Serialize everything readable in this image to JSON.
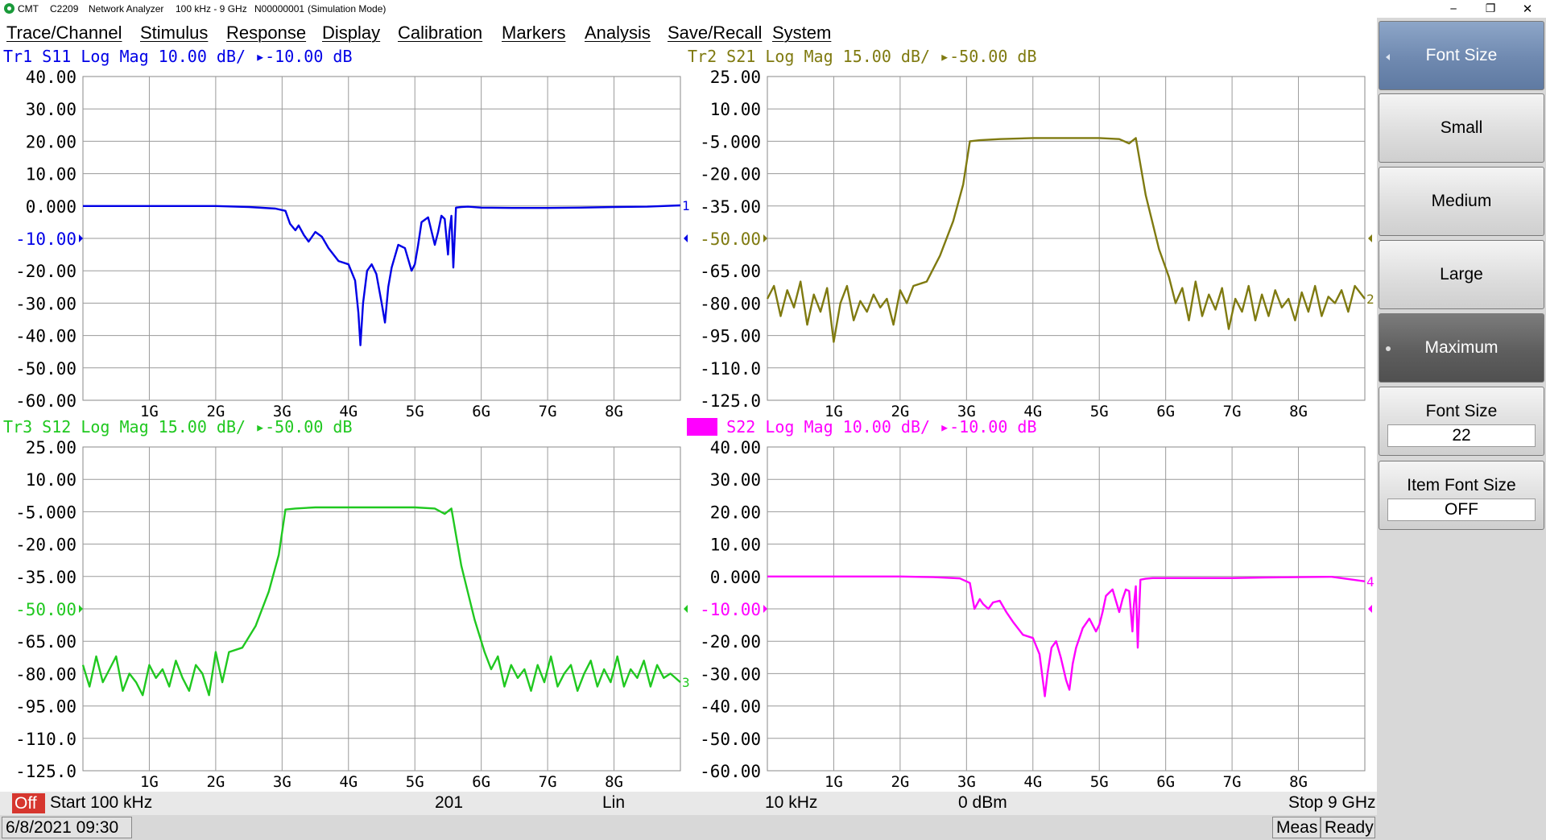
{
  "window": {
    "brand": "CMT",
    "model": "C2209",
    "app": "Network Analyzer",
    "range": "100 kHz - 9 GHz",
    "serial": "N00000001",
    "mode": "(Simulation Mode)",
    "minimize_glyph": "─",
    "restore_glyph": "❐",
    "close_glyph": "✕"
  },
  "menu": [
    "Trace/Channel",
    "Stimulus",
    "Response",
    "Display",
    "Calibration",
    "Markers",
    "Analysis",
    "Save/Recall",
    "System"
  ],
  "colors": {
    "tr1": "#0000e6",
    "tr2": "#7f7a10",
    "tr3": "#20c820",
    "tr4": "#ff00ff",
    "tr4_badge_text": "#ffffff",
    "grid": "#9a9a9a",
    "off_badge": "#d6362e",
    "softkey_header": "#6f89b0"
  },
  "softkeys": {
    "header": "Font Size",
    "small": "Small",
    "medium": "Medium",
    "large": "Large",
    "maximum": "Maximum",
    "font_size_label": "Font Size",
    "font_size_value": "22",
    "item_font_size_label": "Item Font Size",
    "item_font_size_value": "OFF"
  },
  "status": {
    "off": "Off",
    "start": "Start 100 kHz",
    "points": "201",
    "sweep_type": "Lin",
    "ifbw": "10 kHz",
    "power": "0 dBm",
    "stop": "Stop 9 GHz"
  },
  "bottom": {
    "datetime": "6/8/2021 09:30",
    "meas": "Meas",
    "ready": "Ready"
  },
  "chart_data": [
    {
      "type": "line",
      "trace": "Tr1",
      "param": "S11",
      "format": "Log Mag",
      "scale": "10.00 dB/",
      "ref_glyph": "▸",
      "ref": "-10.00 dB",
      "yticks": [
        "40.00",
        "30.00",
        "20.00",
        "10.00",
        "0.000",
        "-10.00",
        "-20.00",
        "-30.00",
        "-40.00",
        "-50.00",
        "-60.00"
      ],
      "ytick_ref_index": 5,
      "ylim": [
        -60,
        40
      ],
      "xlim": [
        0,
        9
      ],
      "xticks": [
        "1G",
        "2G",
        "3G",
        "4G",
        "5G",
        "6G",
        "7G",
        "8G"
      ],
      "trace_number": "1",
      "x": [
        0,
        0.5,
        1,
        1.5,
        2,
        2.5,
        2.9,
        3.05,
        3.12,
        3.2,
        3.25,
        3.33,
        3.4,
        3.5,
        3.6,
        3.7,
        3.85,
        4.0,
        4.1,
        4.15,
        4.18,
        4.22,
        4.28,
        4.35,
        4.42,
        4.5,
        4.55,
        4.6,
        4.65,
        4.75,
        4.85,
        4.95,
        5.0,
        5.05,
        5.1,
        5.2,
        5.3,
        5.35,
        5.4,
        5.45,
        5.5,
        5.52,
        5.55,
        5.58,
        5.62,
        5.7,
        5.8,
        6,
        6.5,
        7,
        7.5,
        8,
        8.5,
        9
      ],
      "y": [
        0,
        0,
        0,
        0,
        0,
        -0.3,
        -0.8,
        -1.5,
        -5.5,
        -7.5,
        -6,
        -9,
        -11,
        -8,
        -9.5,
        -13,
        -17,
        -18,
        -23,
        -33,
        -43,
        -30,
        -20,
        -18,
        -21,
        -30,
        -36,
        -25,
        -19,
        -12,
        -13,
        -20,
        -18,
        -12,
        -5,
        -3.5,
        -12,
        -8,
        -3,
        -4,
        -15,
        -8,
        -3,
        -19,
        -0.5,
        -0.3,
        -0.2,
        -0.5,
        -0.6,
        -0.6,
        -0.5,
        -0.3,
        -0.2,
        0.2
      ]
    },
    {
      "type": "line",
      "trace": "Tr2",
      "param": "S21",
      "format": "Log Mag",
      "scale": "15.00 dB/",
      "ref_glyph": "▸",
      "ref": "-50.00 dB",
      "yticks": [
        "25.00",
        "10.00",
        "-5.000",
        "-20.00",
        "-35.00",
        "-50.00",
        "-65.00",
        "-80.00",
        "-95.00",
        "-110.0",
        "-125.0"
      ],
      "ytick_ref_index": 5,
      "ylim": [
        -125,
        25
      ],
      "xlim": [
        0,
        9
      ],
      "xticks": [
        "1G",
        "2G",
        "3G",
        "4G",
        "5G",
        "6G",
        "7G",
        "8G"
      ],
      "trace_number": "2",
      "x": [
        0,
        0.1,
        0.2,
        0.3,
        0.4,
        0.5,
        0.6,
        0.7,
        0.8,
        0.9,
        1.0,
        1.1,
        1.2,
        1.3,
        1.4,
        1.5,
        1.6,
        1.7,
        1.8,
        1.9,
        2.0,
        2.1,
        2.2,
        2.4,
        2.6,
        2.8,
        2.95,
        3.05,
        3.2,
        3.5,
        4.0,
        4.5,
        5.0,
        5.3,
        5.45,
        5.55,
        5.7,
        5.9,
        6.05,
        6.15,
        6.25,
        6.35,
        6.45,
        6.55,
        6.65,
        6.75,
        6.85,
        6.95,
        7.05,
        7.15,
        7.25,
        7.35,
        7.45,
        7.55,
        7.65,
        7.75,
        7.85,
        7.95,
        8.05,
        8.15,
        8.25,
        8.35,
        8.45,
        8.55,
        8.65,
        8.75,
        8.85,
        9.0
      ],
      "y": [
        -78,
        -72,
        -86,
        -74,
        -82,
        -70,
        -90,
        -76,
        -84,
        -73,
        -98,
        -80,
        -72,
        -88,
        -79,
        -84,
        -76,
        -82,
        -78,
        -90,
        -74,
        -80,
        -72,
        -70,
        -58,
        -42,
        -25,
        -5,
        -4.5,
        -4,
        -3.5,
        -3.5,
        -3.5,
        -4,
        -6,
        -3.5,
        -30,
        -55,
        -68,
        -80,
        -73,
        -88,
        -70,
        -86,
        -76,
        -83,
        -73,
        -92,
        -78,
        -84,
        -72,
        -88,
        -76,
        -86,
        -74,
        -82,
        -78,
        -88,
        -75,
        -84,
        -72,
        -86,
        -77,
        -80,
        -74,
        -84,
        -72,
        -78
      ]
    },
    {
      "type": "line",
      "trace": "Tr3",
      "param": "S12",
      "format": "Log Mag",
      "scale": "15.00 dB/",
      "ref_glyph": "▸",
      "ref": "-50.00 dB",
      "yticks": [
        "25.00",
        "10.00",
        "-5.000",
        "-20.00",
        "-35.00",
        "-50.00",
        "-65.00",
        "-80.00",
        "-95.00",
        "-110.0",
        "-125.0"
      ],
      "ytick_ref_index": 5,
      "ylim": [
        -125,
        25
      ],
      "xlim": [
        0,
        9
      ],
      "xticks": [
        "1G",
        "2G",
        "3G",
        "4G",
        "5G",
        "6G",
        "7G",
        "8G"
      ],
      "trace_number": "3",
      "x": [
        0,
        0.1,
        0.2,
        0.3,
        0.4,
        0.5,
        0.6,
        0.7,
        0.8,
        0.9,
        1.0,
        1.1,
        1.2,
        1.3,
        1.4,
        1.5,
        1.6,
        1.7,
        1.8,
        1.9,
        2.0,
        2.1,
        2.2,
        2.4,
        2.6,
        2.8,
        2.95,
        3.05,
        3.2,
        3.5,
        4.0,
        4.5,
        5.0,
        5.3,
        5.45,
        5.55,
        5.7,
        5.9,
        6.05,
        6.15,
        6.25,
        6.35,
        6.45,
        6.55,
        6.65,
        6.75,
        6.85,
        6.95,
        7.05,
        7.15,
        7.25,
        7.35,
        7.45,
        7.55,
        7.65,
        7.75,
        7.85,
        7.95,
        8.05,
        8.15,
        8.25,
        8.35,
        8.45,
        8.55,
        8.65,
        8.75,
        8.85,
        9.0
      ],
      "y": [
        -76,
        -86,
        -72,
        -84,
        -78,
        -72,
        -88,
        -80,
        -84,
        -90,
        -76,
        -82,
        -78,
        -86,
        -74,
        -82,
        -88,
        -76,
        -80,
        -90,
        -70,
        -84,
        -70,
        -68,
        -58,
        -42,
        -25,
        -4,
        -3.5,
        -3,
        -3,
        -3,
        -3,
        -3.5,
        -6,
        -3.5,
        -30,
        -55,
        -70,
        -78,
        -72,
        -86,
        -76,
        -82,
        -78,
        -88,
        -76,
        -84,
        -72,
        -86,
        -80,
        -76,
        -88,
        -80,
        -74,
        -86,
        -78,
        -84,
        -72,
        -86,
        -78,
        -82,
        -74,
        -86,
        -76,
        -82,
        -80,
        -84
      ]
    },
    {
      "type": "line",
      "trace": "Tr4",
      "param": "S22",
      "format": "Log Mag",
      "scale": "10.00 dB/",
      "ref_glyph": "▸",
      "ref": "-10.00 dB",
      "yticks": [
        "40.00",
        "30.00",
        "20.00",
        "10.00",
        "0.000",
        "-10.00",
        "-20.00",
        "-30.00",
        "-40.00",
        "-50.00",
        "-60.00"
      ],
      "ytick_ref_index": 5,
      "ylim": [
        -60,
        40
      ],
      "xlim": [
        0,
        9
      ],
      "xticks": [
        "1G",
        "2G",
        "3G",
        "4G",
        "5G",
        "6G",
        "7G",
        "8G"
      ],
      "trace_number": "4",
      "x": [
        0,
        0.5,
        1,
        1.5,
        2,
        2.5,
        2.9,
        3.05,
        3.12,
        3.2,
        3.25,
        3.33,
        3.4,
        3.5,
        3.6,
        3.7,
        3.85,
        4.0,
        4.1,
        4.15,
        4.18,
        4.22,
        4.28,
        4.35,
        4.42,
        4.5,
        4.55,
        4.6,
        4.65,
        4.75,
        4.85,
        4.95,
        5.0,
        5.05,
        5.1,
        5.2,
        5.3,
        5.35,
        5.4,
        5.45,
        5.5,
        5.52,
        5.55,
        5.58,
        5.62,
        5.7,
        5.8,
        6,
        6.5,
        7,
        7.5,
        8,
        8.5,
        9
      ],
      "y": [
        0,
        0,
        0,
        0,
        0,
        -0.2,
        -0.6,
        -2,
        -10,
        -7,
        -8.5,
        -10,
        -8,
        -7.5,
        -11,
        -14,
        -18,
        -19,
        -24,
        -32,
        -37,
        -30,
        -22,
        -20,
        -25,
        -32,
        -35,
        -27,
        -22,
        -16,
        -13,
        -17,
        -15,
        -11,
        -6,
        -4,
        -11,
        -7,
        -4,
        -4.5,
        -17,
        -9,
        -3,
        -22,
        -1,
        -0.7,
        -0.5,
        -0.5,
        -0.5,
        -0.5,
        -0.3,
        -0.2,
        -0.1,
        -1.5
      ]
    }
  ]
}
